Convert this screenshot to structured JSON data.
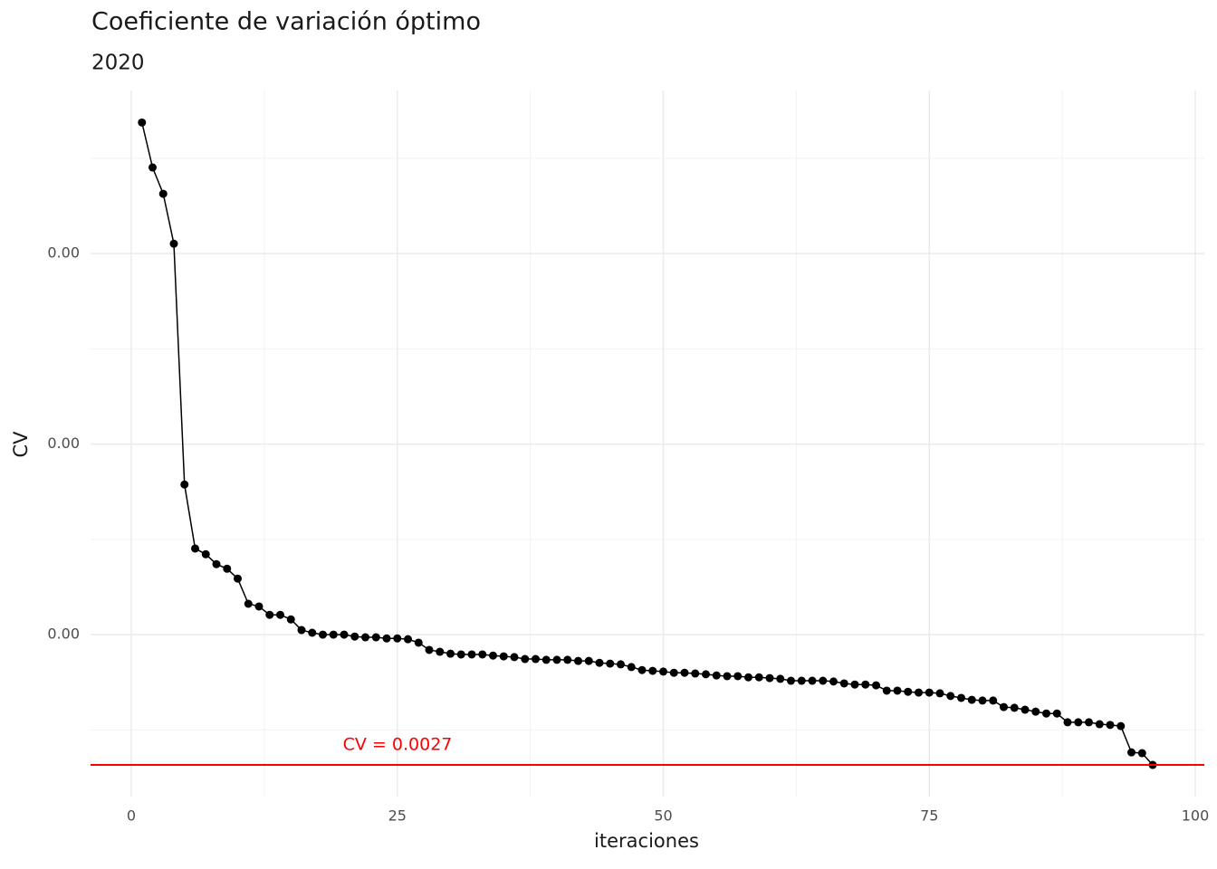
{
  "chart_data": {
    "type": "line",
    "title": "Coeficiente de variación óptimo",
    "subtitle": "2020",
    "xlabel": "iteraciones",
    "ylabel": "CV",
    "x": [
      1,
      2,
      3,
      4,
      5,
      6,
      7,
      8,
      9,
      10,
      11,
      12,
      13,
      14,
      15,
      16,
      17,
      18,
      19,
      20,
      21,
      22,
      23,
      24,
      25,
      26,
      27,
      28,
      29,
      30,
      31,
      32,
      33,
      34,
      35,
      36,
      37,
      38,
      39,
      40,
      41,
      42,
      43,
      44,
      45,
      46,
      47,
      48,
      49,
      50,
      51,
      52,
      53,
      54,
      55,
      56,
      57,
      58,
      59,
      60,
      61,
      62,
      63,
      64,
      65,
      66,
      67,
      68,
      69,
      70,
      71,
      72,
      73,
      74,
      75,
      76,
      77,
      78,
      79,
      80,
      81,
      82,
      83,
      84,
      85,
      86,
      87,
      88,
      89,
      90,
      91,
      92,
      93,
      94,
      95,
      96
    ],
    "series": [
      {
        "name": "CV",
        "color": "#000000",
        "values": [
          0.004344,
          0.004226,
          0.004157,
          0.004026,
          0.003394,
          0.003226,
          0.003211,
          0.003185,
          0.003173,
          0.003147,
          0.003081,
          0.003074,
          0.003052,
          0.003052,
          0.00304,
          0.003012,
          0.003005,
          0.003,
          0.003,
          0.003,
          0.002995,
          0.002993,
          0.002993,
          0.00299,
          0.00299,
          0.002988,
          0.002979,
          0.00296,
          0.002955,
          0.00295,
          0.002948,
          0.002948,
          0.002948,
          0.002945,
          0.002943,
          0.002941,
          0.002936,
          0.002936,
          0.002934,
          0.002934,
          0.002934,
          0.002931,
          0.002931,
          0.002926,
          0.002924,
          0.002922,
          0.002915,
          0.002907,
          0.002905,
          0.002903,
          0.0029,
          0.0029,
          0.002898,
          0.002896,
          0.002893,
          0.002891,
          0.002891,
          0.002888,
          0.002888,
          0.002886,
          0.002884,
          0.002879,
          0.002879,
          0.002879,
          0.002879,
          0.002877,
          0.002872,
          0.002869,
          0.002869,
          0.002867,
          0.002853,
          0.002853,
          0.00285,
          0.002848,
          0.002848,
          0.002846,
          0.002839,
          0.002834,
          0.002829,
          0.002827,
          0.002827,
          0.00281,
          0.002808,
          0.002803,
          0.002798,
          0.002793,
          0.002793,
          0.00277,
          0.00277,
          0.00277,
          0.002765,
          0.002763,
          0.00276,
          0.002691,
          0.002689,
          0.002658
        ]
      }
    ],
    "hline": {
      "value": 0.002658,
      "label": "CV = 0.0027",
      "color": "#ff0000"
    },
    "xlim": [
      -3.83,
      100.85
    ],
    "ylim": [
      0.002575,
      0.004428
    ],
    "xticks": [
      0,
      25,
      50,
      75,
      100
    ],
    "yticks": [
      {
        "value": 0.003,
        "label": "0.00"
      },
      {
        "value": 0.0035,
        "label": "0.00"
      },
      {
        "value": 0.004,
        "label": "0.00"
      }
    ],
    "grid": true
  }
}
